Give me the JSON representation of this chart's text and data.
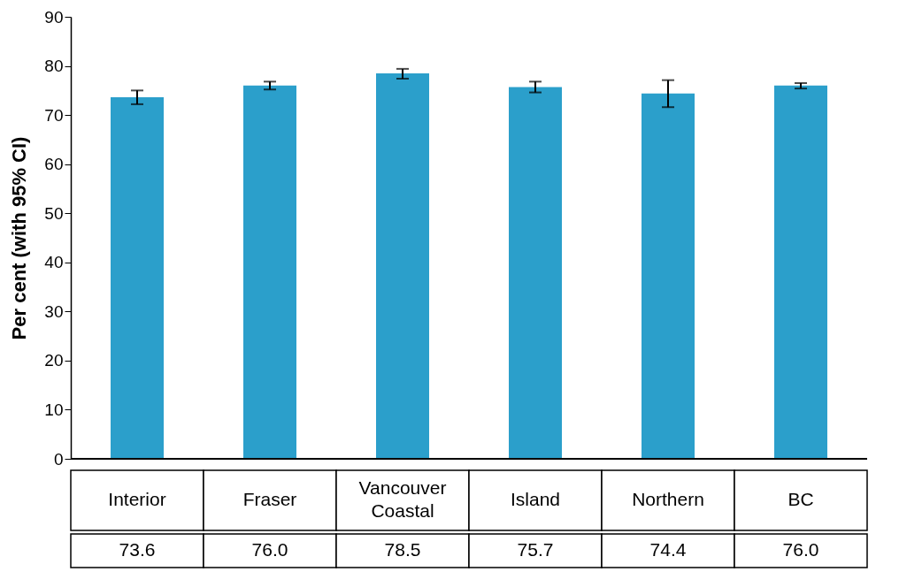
{
  "chart_data": {
    "type": "bar",
    "ylabel": "Per cent (with 95% CI)",
    "categories": [
      "Interior",
      "Fraser",
      "Vancouver Coastal",
      "Island",
      "Northern",
      "BC"
    ],
    "values": [
      73.6,
      76.0,
      78.5,
      75.7,
      74.4,
      76.0
    ],
    "value_labels": [
      "73.6",
      "76.0",
      "78.5",
      "75.7",
      "74.4",
      "76.0"
    ],
    "errors": [
      [
        72.2,
        75.0
      ],
      [
        75.2,
        76.8
      ],
      [
        77.4,
        79.4
      ],
      [
        74.6,
        76.8
      ],
      [
        71.6,
        77.1
      ],
      [
        75.4,
        76.5
      ]
    ],
    "color": "#2b9fcb",
    "ylim": [
      0,
      90
    ],
    "yticks": [
      0,
      10,
      20,
      30,
      40,
      50,
      60,
      70,
      80,
      90
    ],
    "grid": false
  }
}
